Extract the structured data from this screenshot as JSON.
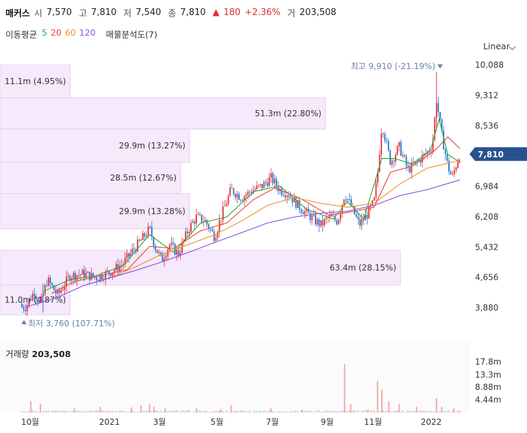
{
  "header": {
    "name": "매커스",
    "open_label": "시",
    "open": "7,570",
    "high_label": "고",
    "high": "7,810",
    "low_label": "저",
    "low": "7,540",
    "close_label": "종",
    "close": "7,810",
    "change_arrow": "▲",
    "change": "180",
    "change_pct": "+2.36%",
    "volume_label": "거",
    "volume": "203,508"
  },
  "ma_legend": {
    "title": "이동평균",
    "items": [
      {
        "label": "5",
        "color": "#2eaa3c"
      },
      {
        "label": "20",
        "color": "#e8473c"
      },
      {
        "label": "60",
        "color": "#f0922e"
      },
      {
        "label": "120",
        "color": "#8a56e0"
      }
    ],
    "profile_label": "매물분석도(7)"
  },
  "scale_label": "Linear",
  "colors": {
    "up": "#e0292f",
    "down": "#1a6fd1",
    "current_tag": "#28518f",
    "profile_fill": "#f5e9fb",
    "profile_stroke": "#e5cef3"
  },
  "chart_data": {
    "type": "candlestick",
    "y_ticks": [
      "10,088",
      "9,312",
      "8,536",
      "6,984",
      "6,208",
      "5,432",
      "4,656",
      "3,880"
    ],
    "ylim": [
      3700,
      10200
    ],
    "x_ticks": [
      "10월",
      "2021",
      "3월",
      "5월",
      "7월",
      "9월",
      "11월",
      "2022"
    ],
    "current_price": "7,810",
    "current_value": 7810,
    "max_marker": {
      "text": "최고 9,910 (-21.19%)",
      "value": 9910
    },
    "min_marker": {
      "text": "최저 3,760 (107.71%)",
      "value": 3760
    },
    "volume_profile": [
      {
        "label": "11.1m (4.95%)",
        "low": 9250,
        "high": 10088,
        "fraction": 0.1751
      },
      {
        "label": "51.3m (22.80%)",
        "low": 8450,
        "high": 9250,
        "fraction": 0.8131
      },
      {
        "label": "29.9m (13.27%)",
        "low": 7600,
        "high": 8450,
        "fraction": 0.4734
      },
      {
        "label": "28.5m (12.67%)",
        "low": 6800,
        "high": 7600,
        "fraction": 0.4514
      },
      {
        "label": "29.9m (13.28%)",
        "low": 5900,
        "high": 6800,
        "fraction": 0.4734
      },
      {
        "label": "63.4m (28.15%)",
        "low": 4460,
        "high": 5350,
        "fraction": 1.0
      },
      {
        "label": "11.0m (4.87%)",
        "low": 3700,
        "high": 4460,
        "fraction": 0.1751
      }
    ],
    "price_points": [
      [
        "2020-09-25",
        3900
      ],
      [
        "2020-10-05",
        4300
      ],
      [
        "2020-10-12",
        3950
      ],
      [
        "2020-10-20",
        4600
      ],
      [
        "2020-11-01",
        4200
      ],
      [
        "2020-11-15",
        4700
      ],
      [
        "2020-12-01",
        4750
      ],
      [
        "2020-12-15",
        4650
      ],
      [
        "2021-01-01",
        4800
      ],
      [
        "2021-01-15",
        5000
      ],
      [
        "2021-01-25",
        5300
      ],
      [
        "2021-02-05",
        5600
      ],
      [
        "2021-02-15",
        5900
      ],
      [
        "2021-02-22",
        5400
      ],
      [
        "2021-03-01",
        5100
      ],
      [
        "2021-03-10",
        5500
      ],
      [
        "2021-03-20",
        5250
      ],
      [
        "2021-04-01",
        5900
      ],
      [
        "2021-04-10",
        6200
      ],
      [
        "2021-04-20",
        6100
      ],
      [
        "2021-05-01",
        5700
      ],
      [
        "2021-05-10",
        6300
      ],
      [
        "2021-05-20",
        6900
      ],
      [
        "2021-06-01",
        6700
      ],
      [
        "2021-06-15",
        6900
      ],
      [
        "2021-06-25",
        7000
      ],
      [
        "2021-07-05",
        7200
      ],
      [
        "2021-07-15",
        6900
      ],
      [
        "2021-07-25",
        6800
      ],
      [
        "2021-08-05",
        6500
      ],
      [
        "2021-08-15",
        6300
      ],
      [
        "2021-08-25",
        6100
      ],
      [
        "2021-09-01",
        6000
      ],
      [
        "2021-09-10",
        6200
      ],
      [
        "2021-09-20",
        6100
      ],
      [
        "2021-09-28",
        6800
      ],
      [
        "2021-10-05",
        6500
      ],
      [
        "2021-10-15",
        6000
      ],
      [
        "2021-10-25",
        6300
      ],
      [
        "2021-11-01",
        6600
      ],
      [
        "2021-11-05",
        7300
      ],
      [
        "2021-11-10",
        8600
      ],
      [
        "2021-11-20",
        7600
      ],
      [
        "2021-11-30",
        8000
      ],
      [
        "2021-12-10",
        7400
      ],
      [
        "2021-12-20",
        7600
      ],
      [
        "2021-12-30",
        7800
      ],
      [
        "2022-01-07",
        8000
      ],
      [
        "2022-01-12",
        9200
      ],
      [
        "2022-01-18",
        8300
      ],
      [
        "2022-01-25",
        7500
      ],
      [
        "2022-01-30",
        7200
      ],
      [
        "2022-02-05",
        7630
      ],
      [
        "2022-02-08",
        7810
      ]
    ],
    "moving_averages": [
      {
        "name": "5",
        "color": "#2eaa3c",
        "points": [
          [
            "2020-10-15",
            4300
          ],
          [
            "2020-11-15",
            4600
          ],
          [
            "2020-12-15",
            4700
          ],
          [
            "2021-01-15",
            4950
          ],
          [
            "2021-02-15",
            5750
          ],
          [
            "2021-03-15",
            5300
          ],
          [
            "2021-04-15",
            6050
          ],
          [
            "2021-05-15",
            6200
          ],
          [
            "2021-06-15",
            6850
          ],
          [
            "2021-07-15",
            7000
          ],
          [
            "2021-08-15",
            6400
          ],
          [
            "2021-09-15",
            6150
          ],
          [
            "2021-10-01",
            6600
          ],
          [
            "2021-10-20",
            6150
          ],
          [
            "2021-11-10",
            7700
          ],
          [
            "2021-11-25",
            7700
          ],
          [
            "2021-12-15",
            7550
          ],
          [
            "2022-01-05",
            7900
          ],
          [
            "2022-01-15",
            8700
          ],
          [
            "2022-01-25",
            7800
          ],
          [
            "2022-02-08",
            7600
          ]
        ]
      },
      {
        "name": "20",
        "color": "#e8473c",
        "points": [
          [
            "2020-10-25",
            4250
          ],
          [
            "2020-11-20",
            4550
          ],
          [
            "2020-12-20",
            4700
          ],
          [
            "2021-01-20",
            4850
          ],
          [
            "2021-02-15",
            5450
          ],
          [
            "2021-03-15",
            5400
          ],
          [
            "2021-04-15",
            5850
          ],
          [
            "2021-05-15",
            6050
          ],
          [
            "2021-06-15",
            6650
          ],
          [
            "2021-07-10",
            6950
          ],
          [
            "2021-08-10",
            6650
          ],
          [
            "2021-09-10",
            6250
          ],
          [
            "2021-10-10",
            6350
          ],
          [
            "2021-11-01",
            6450
          ],
          [
            "2021-11-20",
            7350
          ],
          [
            "2021-12-15",
            7500
          ],
          [
            "2022-01-10",
            7900
          ],
          [
            "2022-01-25",
            8250
          ],
          [
            "2022-02-08",
            7950
          ]
        ]
      },
      {
        "name": "60",
        "color": "#f0922e",
        "points": [
          [
            "2020-12-01",
            4450
          ],
          [
            "2021-01-01",
            4650
          ],
          [
            "2021-02-01",
            4950
          ],
          [
            "2021-03-01",
            5250
          ],
          [
            "2021-04-01",
            5500
          ],
          [
            "2021-05-01",
            5750
          ],
          [
            "2021-06-01",
            6100
          ],
          [
            "2021-07-01",
            6500
          ],
          [
            "2021-08-01",
            6700
          ],
          [
            "2021-09-01",
            6550
          ],
          [
            "2021-10-01",
            6450
          ],
          [
            "2021-11-01",
            6550
          ],
          [
            "2021-12-01",
            7050
          ],
          [
            "2022-01-01",
            7450
          ],
          [
            "2022-02-08",
            7650
          ]
        ]
      },
      {
        "name": "120",
        "color": "#8a56e0",
        "points": [
          [
            "2020-09-25",
            3900
          ],
          [
            "2020-11-01",
            4150
          ],
          [
            "2020-12-01",
            4450
          ],
          [
            "2021-01-01",
            4650
          ],
          [
            "2021-02-01",
            4850
          ],
          [
            "2021-03-01",
            5050
          ],
          [
            "2021-04-01",
            5300
          ],
          [
            "2021-05-01",
            5550
          ],
          [
            "2021-06-01",
            5800
          ],
          [
            "2021-07-01",
            6050
          ],
          [
            "2021-08-01",
            6200
          ],
          [
            "2021-09-01",
            6300
          ],
          [
            "2021-10-01",
            6350
          ],
          [
            "2021-11-01",
            6500
          ],
          [
            "2021-12-01",
            6750
          ],
          [
            "2022-01-01",
            6900
          ],
          [
            "2022-02-08",
            7150
          ]
        ]
      }
    ],
    "volume": {
      "label": "거래량",
      "value": "203,508",
      "y_ticks": [
        "17.8m",
        "13.3m",
        "8.88m",
        "4.44m"
      ],
      "ylim": [
        0,
        20000000
      ],
      "spikes": [
        [
          "2020-10-01",
          4000000
        ],
        [
          "2020-10-12",
          3000000
        ],
        [
          "2020-11-20",
          1500000
        ],
        [
          "2020-12-20",
          2000000
        ],
        [
          "2021-01-25",
          1800000
        ],
        [
          "2021-02-05",
          2500000
        ],
        [
          "2021-02-15",
          3000000
        ],
        [
          "2021-02-20",
          2000000
        ],
        [
          "2021-03-05",
          1500000
        ],
        [
          "2021-04-10",
          1500000
        ],
        [
          "2021-05-08",
          1200000
        ],
        [
          "2021-05-20",
          2500000
        ],
        [
          "2021-07-05",
          1500000
        ],
        [
          "2021-08-10",
          1000000
        ],
        [
          "2021-09-28",
          17000000
        ],
        [
          "2021-10-05",
          3000000
        ],
        [
          "2021-10-25",
          1200000
        ],
        [
          "2021-11-05",
          11000000
        ],
        [
          "2021-11-10",
          8000000
        ],
        [
          "2021-11-18",
          4000000
        ],
        [
          "2021-11-30",
          3000000
        ],
        [
          "2021-12-20",
          2000000
        ],
        [
          "2022-01-12",
          5000000
        ],
        [
          "2022-01-18",
          2000000
        ],
        [
          "2022-02-01",
          1500000
        ],
        [
          "2022-02-08",
          500000
        ]
      ]
    }
  }
}
